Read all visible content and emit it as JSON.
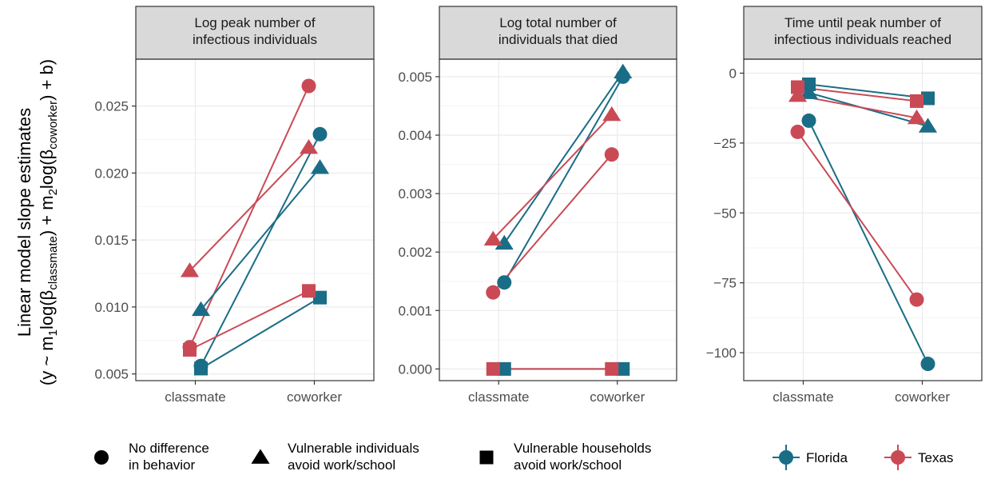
{
  "colors": {
    "Florida": "#1a6d86",
    "Texas": "#c94a55",
    "strip_bg": "#d9d9d9",
    "grid_major": "#ebebeb",
    "grid_minor": "#f5f5f5",
    "panel_border": "#333333"
  },
  "y_axis_title": {
    "line1": "Linear model slope estimates",
    "line2_parts": [
      "(y ~ m",
      "1",
      "log(β",
      "classmate",
      ") + m",
      "2",
      "log(β",
      "coworker",
      ") + b)"
    ]
  },
  "chart_data": [
    {
      "type": "scatter",
      "title": "Log peak number of infectious individuals",
      "title_lines": [
        "Log peak number of",
        "infectious individuals"
      ],
      "categories": [
        "classmate",
        "coworker"
      ],
      "ylim": [
        0.0045,
        0.0285
      ],
      "yticks": [
        0.005,
        0.01,
        0.015,
        0.02,
        0.025
      ],
      "ytick_labels": [
        "0.005",
        "0.010",
        "0.015",
        "0.020",
        "0.025"
      ],
      "series": [
        {
          "state": "Florida",
          "shape": "circle",
          "values": [
            0.0056,
            0.0229
          ]
        },
        {
          "state": "Texas",
          "shape": "circle",
          "values": [
            0.007,
            0.0265
          ]
        },
        {
          "state": "Florida",
          "shape": "triangle",
          "values": [
            0.0098,
            0.0204
          ]
        },
        {
          "state": "Texas",
          "shape": "triangle",
          "values": [
            0.0127,
            0.0219
          ]
        },
        {
          "state": "Florida",
          "shape": "square",
          "values": [
            0.0054,
            0.0107
          ]
        },
        {
          "state": "Texas",
          "shape": "square",
          "values": [
            0.0068,
            0.0112
          ]
        }
      ]
    },
    {
      "type": "scatter",
      "title": "Log total number of individuals that died",
      "title_lines": [
        "Log total number of",
        "individuals that died"
      ],
      "categories": [
        "classmate",
        "coworker"
      ],
      "ylim": [
        -0.0002,
        0.0053
      ],
      "yticks": [
        0.0,
        0.001,
        0.002,
        0.003,
        0.004,
        0.005
      ],
      "ytick_labels": [
        "0.000",
        "0.001",
        "0.002",
        "0.003",
        "0.004",
        "0.005"
      ],
      "series": [
        {
          "state": "Florida",
          "shape": "circle",
          "values": [
            0.00148,
            0.005
          ]
        },
        {
          "state": "Texas",
          "shape": "circle",
          "values": [
            0.00131,
            0.00367
          ]
        },
        {
          "state": "Florida",
          "shape": "triangle",
          "values": [
            0.00215,
            0.00508
          ]
        },
        {
          "state": "Texas",
          "shape": "triangle",
          "values": [
            0.00222,
            0.00435
          ]
        },
        {
          "state": "Florida",
          "shape": "square",
          "values": [
            0.0,
            0.0
          ]
        },
        {
          "state": "Texas",
          "shape": "square",
          "values": [
            0.0,
            0.0
          ]
        }
      ]
    },
    {
      "type": "scatter",
      "title": "Time until peak number of infectious individuals reached",
      "title_lines": [
        "Time until peak number of",
        "infectious individuals reached"
      ],
      "categories": [
        "classmate",
        "coworker"
      ],
      "ylim": [
        -110,
        5
      ],
      "yticks": [
        0,
        -25,
        -50,
        -75,
        -100
      ],
      "ytick_labels": [
        "0",
        "−25",
        "−50",
        "−75",
        "−100"
      ],
      "series": [
        {
          "state": "Florida",
          "shape": "circle",
          "values": [
            -17,
            -104
          ]
        },
        {
          "state": "Texas",
          "shape": "circle",
          "values": [
            -21,
            -81
          ]
        },
        {
          "state": "Florida",
          "shape": "triangle",
          "values": [
            -7,
            -19
          ]
        },
        {
          "state": "Texas",
          "shape": "triangle",
          "values": [
            -8,
            -16
          ]
        },
        {
          "state": "Florida",
          "shape": "square",
          "values": [
            -4,
            -9
          ]
        },
        {
          "state": "Texas",
          "shape": "square",
          "values": [
            -5,
            -10
          ]
        }
      ]
    }
  ],
  "legend_shapes": [
    {
      "shape": "circle",
      "line1": "No difference",
      "line2": "in behavior"
    },
    {
      "shape": "triangle",
      "line1": "Vulnerable individuals",
      "line2": "avoid work/school"
    },
    {
      "shape": "square",
      "line1": "Vulnerable households",
      "line2": "avoid work/school"
    }
  ],
  "legend_states": [
    {
      "state": "Florida",
      "label": "Florida"
    },
    {
      "state": "Texas",
      "label": "Texas"
    }
  ]
}
